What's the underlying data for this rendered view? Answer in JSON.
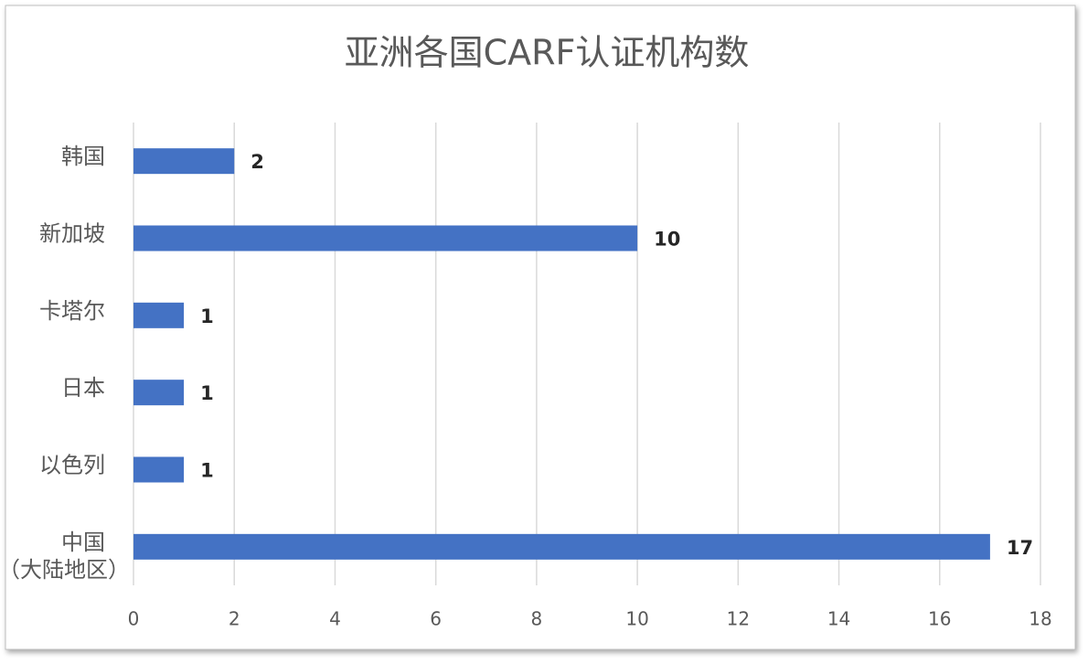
{
  "chart_data": {
    "type": "hbar",
    "title": "亚洲各国CARF认证机构数",
    "categories": [
      "韩国",
      "新加坡",
      "卡塔尔",
      "日本",
      "以色列",
      "中国\n（大陆地区）"
    ],
    "values": [
      2,
      10,
      1,
      1,
      1,
      17
    ],
    "color": "#4472c4",
    "xlim": [
      0,
      18
    ],
    "xticks": [
      0,
      2,
      4,
      6,
      8,
      10,
      12,
      14,
      16,
      18
    ],
    "grid": true
  }
}
